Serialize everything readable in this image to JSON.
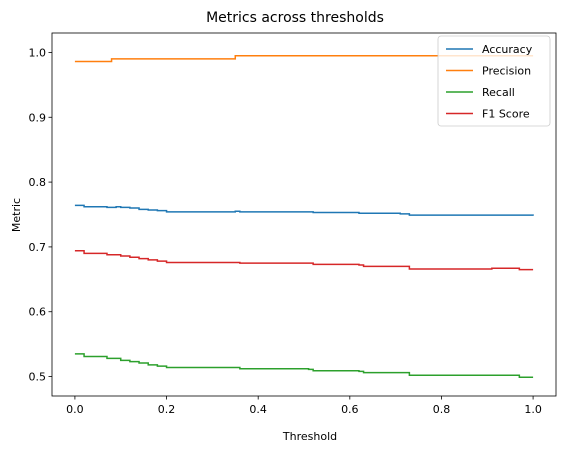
{
  "chart_data": {
    "type": "line",
    "title": "Metrics across thresholds",
    "xlabel": "Threshold",
    "ylabel": "Metric",
    "xlim": [
      -0.05,
      1.05
    ],
    "ylim": [
      0.47,
      1.03
    ],
    "xticks": [
      0.0,
      0.2,
      0.4,
      0.6,
      0.8,
      1.0
    ],
    "xtick_labels": [
      "0.0",
      "0.2",
      "0.4",
      "0.6",
      "0.8",
      "1.0"
    ],
    "yticks": [
      0.5,
      0.6,
      0.7,
      0.8,
      0.9,
      1.0
    ],
    "ytick_labels": [
      "0.5",
      "0.6",
      "0.7",
      "0.8",
      "0.9",
      "1.0"
    ],
    "grid": false,
    "legend_position": "top-right",
    "series": [
      {
        "name": "Accuracy",
        "color": "#1f77b4",
        "points": [
          [
            0.0,
            0.764
          ],
          [
            0.02,
            0.762
          ],
          [
            0.07,
            0.761
          ],
          [
            0.09,
            0.762
          ],
          [
            0.1,
            0.761
          ],
          [
            0.12,
            0.76
          ],
          [
            0.14,
            0.758
          ],
          [
            0.16,
            0.757
          ],
          [
            0.18,
            0.756
          ],
          [
            0.2,
            0.754
          ],
          [
            0.35,
            0.755
          ],
          [
            0.36,
            0.754
          ],
          [
            0.5,
            0.754
          ],
          [
            0.52,
            0.753
          ],
          [
            0.62,
            0.752
          ],
          [
            0.71,
            0.751
          ],
          [
            0.73,
            0.749
          ],
          [
            0.9,
            0.749
          ],
          [
            0.96,
            0.749
          ],
          [
            1.0,
            0.748
          ]
        ]
      },
      {
        "name": "Precision",
        "color": "#ff7f0e",
        "points": [
          [
            0.0,
            0.986
          ],
          [
            0.08,
            0.986
          ],
          [
            0.08,
            0.99
          ],
          [
            0.35,
            0.99
          ],
          [
            0.35,
            0.995
          ],
          [
            1.0,
            0.995
          ]
        ]
      },
      {
        "name": "Recall",
        "color": "#2ca02c",
        "points": [
          [
            0.0,
            0.535
          ],
          [
            0.01,
            0.535
          ],
          [
            0.02,
            0.531
          ],
          [
            0.06,
            0.531
          ],
          [
            0.07,
            0.528
          ],
          [
            0.09,
            0.528
          ],
          [
            0.1,
            0.525
          ],
          [
            0.12,
            0.523
          ],
          [
            0.14,
            0.521
          ],
          [
            0.16,
            0.518
          ],
          [
            0.18,
            0.516
          ],
          [
            0.2,
            0.514
          ],
          [
            0.35,
            0.514
          ],
          [
            0.36,
            0.512
          ],
          [
            0.51,
            0.511
          ],
          [
            0.52,
            0.509
          ],
          [
            0.62,
            0.508
          ],
          [
            0.63,
            0.506
          ],
          [
            0.71,
            0.506
          ],
          [
            0.73,
            0.502
          ],
          [
            0.9,
            0.502
          ],
          [
            0.96,
            0.502
          ],
          [
            0.97,
            0.499
          ],
          [
            1.0,
            0.499
          ]
        ]
      },
      {
        "name": "F1 Score",
        "color": "#d62728",
        "points": [
          [
            0.0,
            0.694
          ],
          [
            0.01,
            0.694
          ],
          [
            0.02,
            0.69
          ],
          [
            0.06,
            0.69
          ],
          [
            0.07,
            0.688
          ],
          [
            0.09,
            0.688
          ],
          [
            0.1,
            0.686
          ],
          [
            0.12,
            0.684
          ],
          [
            0.14,
            0.682
          ],
          [
            0.16,
            0.68
          ],
          [
            0.18,
            0.678
          ],
          [
            0.2,
            0.676
          ],
          [
            0.35,
            0.676
          ],
          [
            0.36,
            0.675
          ],
          [
            0.51,
            0.675
          ],
          [
            0.52,
            0.673
          ],
          [
            0.62,
            0.672
          ],
          [
            0.63,
            0.67
          ],
          [
            0.71,
            0.67
          ],
          [
            0.73,
            0.666
          ],
          [
            0.9,
            0.666
          ],
          [
            0.91,
            0.667
          ],
          [
            0.96,
            0.667
          ],
          [
            0.97,
            0.665
          ],
          [
            1.0,
            0.665
          ]
        ]
      }
    ]
  }
}
